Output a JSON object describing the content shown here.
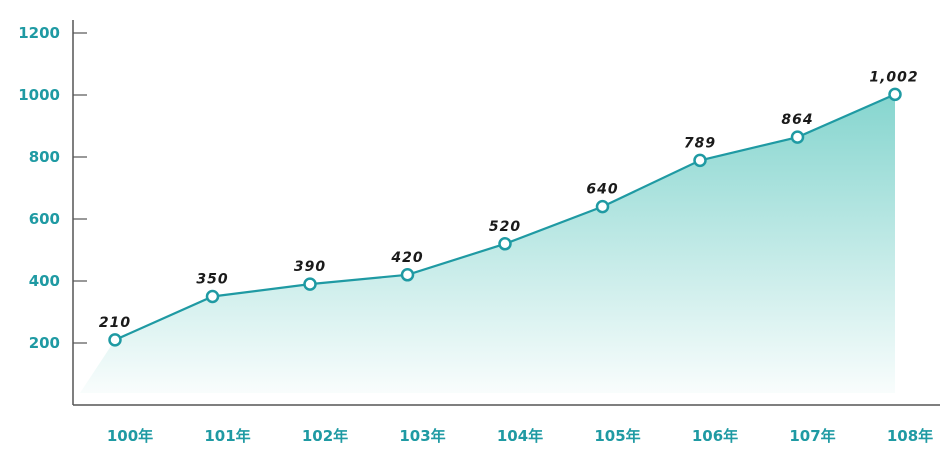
{
  "chart_data": {
    "type": "area",
    "categories": [
      "100年",
      "101年",
      "102年",
      "103年",
      "104年",
      "105年",
      "106年",
      "107年",
      "108年"
    ],
    "values": [
      210,
      350,
      390,
      420,
      520,
      640,
      789,
      864,
      1002
    ],
    "data_labels": [
      "210",
      "350",
      "390",
      "420",
      "520",
      "640",
      "789",
      "864",
      "1,002"
    ],
    "y_ticks": [
      200,
      400,
      600,
      800,
      1000,
      1200
    ],
    "title": "",
    "xlabel": "",
    "ylabel": "",
    "ylim": [
      0,
      1200
    ],
    "grid": false,
    "legend": "none",
    "colors": {
      "line": "#1f9aa3",
      "marker_fill": "#ffffff",
      "area_top": "#7fd3cc",
      "tick_text": "#1f9aa3",
      "label_text": "#1a1a1a",
      "axis": "#555555"
    }
  }
}
